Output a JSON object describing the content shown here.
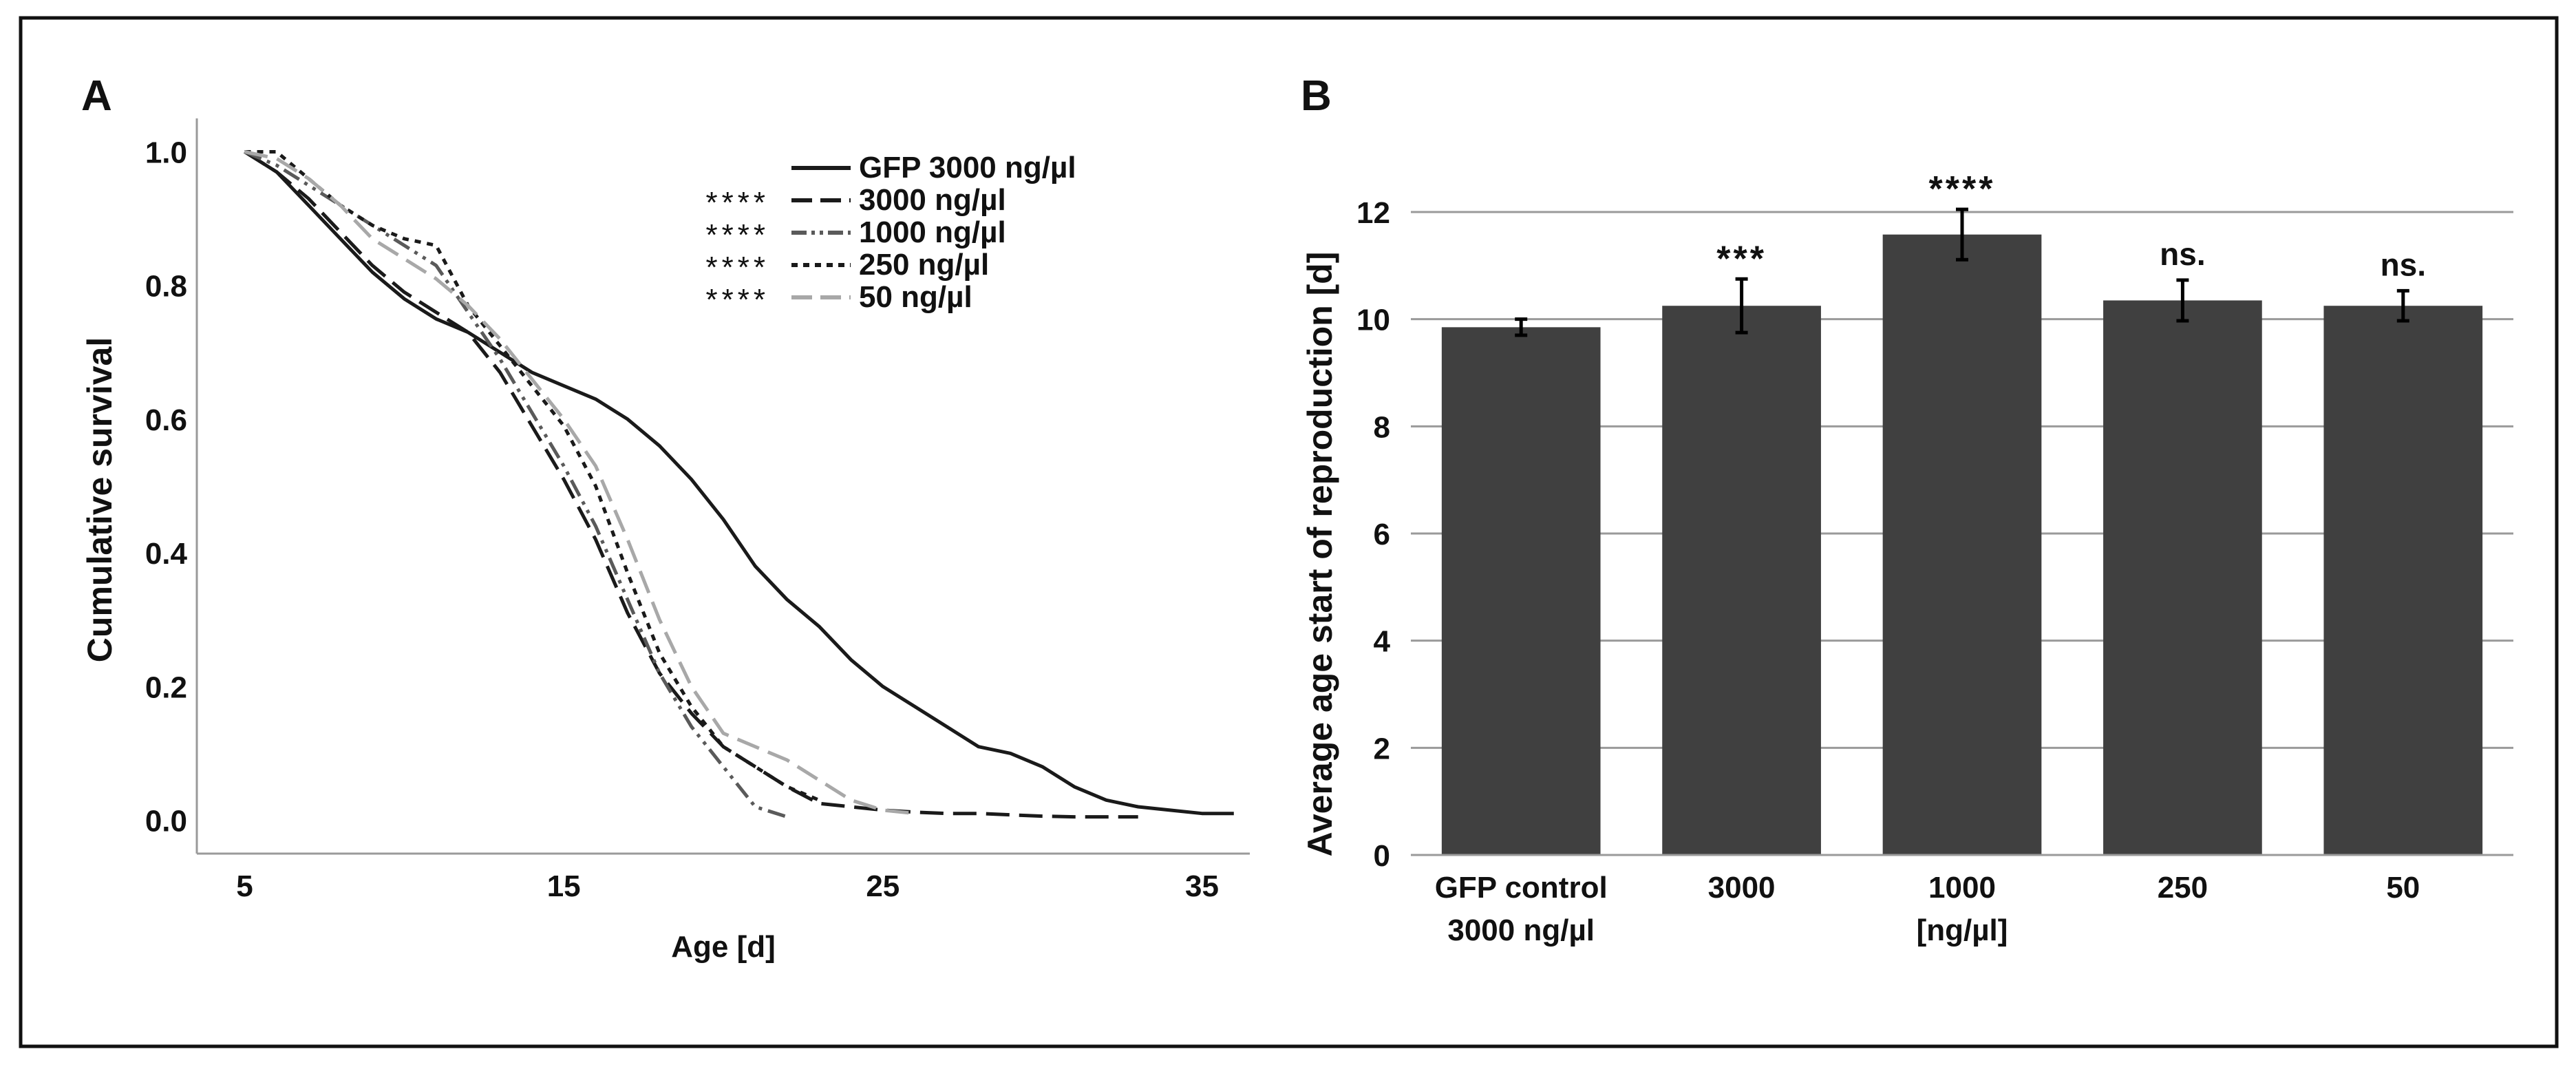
{
  "panel_a_letter": "A",
  "panel_b_letter": "B",
  "chart_data": [
    {
      "type": "line",
      "xlabel": "Age [d]",
      "ylabel": "Cumulative survival",
      "xlim": [
        3.5,
        36.5
      ],
      "ylim": [
        -0.05,
        1.05
      ],
      "xticks": [
        5,
        15,
        25,
        35
      ],
      "yticks": [
        "0.0",
        "0.2",
        "0.4",
        "0.6",
        "0.8",
        "1.0"
      ],
      "grid": false,
      "legend_placement": "top-right",
      "series": [
        {
          "name": "GFP 3000 ng/µl",
          "significance": "",
          "style": "solid",
          "color": "#1a1a1a",
          "x": [
            5,
            6,
            7,
            8,
            9,
            10,
            11,
            12,
            13,
            14,
            15,
            16,
            17,
            18,
            19,
            20,
            21,
            22,
            23,
            24,
            25,
            26,
            27,
            28,
            29,
            30,
            31,
            32,
            33,
            34,
            35,
            36
          ],
          "y": [
            1.0,
            0.97,
            0.92,
            0.87,
            0.82,
            0.78,
            0.75,
            0.73,
            0.7,
            0.67,
            0.65,
            0.63,
            0.6,
            0.56,
            0.51,
            0.45,
            0.38,
            0.33,
            0.29,
            0.24,
            0.2,
            0.17,
            0.14,
            0.11,
            0.1,
            0.08,
            0.05,
            0.03,
            0.02,
            0.015,
            0.01,
            0.01
          ]
        },
        {
          "name": "3000 ng/µl",
          "significance": "****",
          "style": "dashed",
          "color": "#1a1a1a",
          "x": [
            5,
            6,
            7,
            8,
            9,
            10,
            11,
            12,
            13,
            14,
            15,
            16,
            17,
            18,
            19,
            20,
            21,
            22,
            23,
            24,
            25,
            26,
            27,
            28,
            29,
            30,
            31,
            32,
            33
          ],
          "y": [
            1.0,
            0.97,
            0.93,
            0.88,
            0.83,
            0.79,
            0.76,
            0.73,
            0.67,
            0.59,
            0.51,
            0.42,
            0.31,
            0.22,
            0.16,
            0.11,
            0.08,
            0.05,
            0.025,
            0.02,
            0.015,
            0.012,
            0.01,
            0.01,
            0.008,
            0.006,
            0.005,
            0.005,
            0.005
          ]
        },
        {
          "name": "1000 ng/µl",
          "significance": "****",
          "style": "dash-dot-dot",
          "color": "#5a5a5a",
          "x": [
            5,
            6,
            7,
            8,
            9,
            10,
            11,
            12,
            13,
            14,
            15,
            16,
            17,
            18,
            19,
            20,
            21,
            22
          ],
          "y": [
            1.0,
            0.98,
            0.95,
            0.92,
            0.89,
            0.86,
            0.83,
            0.76,
            0.69,
            0.61,
            0.53,
            0.44,
            0.33,
            0.22,
            0.14,
            0.08,
            0.02,
            0.005
          ]
        },
        {
          "name": "250 ng/µl",
          "significance": "****",
          "style": "dotted",
          "color": "#1a1a1a",
          "x": [
            5,
            6,
            7,
            8,
            9,
            10,
            11,
            12,
            13,
            14,
            15,
            16,
            17,
            18,
            19,
            20,
            21,
            22,
            23
          ],
          "y": [
            1.0,
            1.0,
            0.96,
            0.92,
            0.89,
            0.87,
            0.86,
            0.77,
            0.71,
            0.65,
            0.59,
            0.5,
            0.37,
            0.25,
            0.17,
            0.11,
            0.08,
            0.05,
            0.03
          ]
        },
        {
          "name": "50 ng/µl",
          "significance": "****",
          "style": "dashed",
          "color": "#a8a8a8",
          "x": [
            5,
            6,
            7,
            8,
            9,
            10,
            11,
            12,
            13,
            14,
            15,
            16,
            17,
            18,
            19,
            20,
            21,
            22,
            23,
            24,
            25,
            26
          ],
          "y": [
            1.0,
            0.99,
            0.96,
            0.92,
            0.87,
            0.84,
            0.81,
            0.77,
            0.72,
            0.66,
            0.6,
            0.53,
            0.42,
            0.3,
            0.2,
            0.13,
            0.11,
            0.09,
            0.06,
            0.03,
            0.015,
            0.01
          ]
        }
      ]
    },
    {
      "type": "bar",
      "xlabel": "[ng/µl]",
      "ylabel": "Average age start of reproduction [d]",
      "ylim": [
        0,
        12
      ],
      "yticks": [
        0,
        2,
        4,
        6,
        8,
        10,
        12
      ],
      "grid": true,
      "bar_color": "#404040",
      "categories": [
        [
          "GFP control",
          "3000 ng/µl"
        ],
        [
          "3000"
        ],
        [
          "1000"
        ],
        [
          "250"
        ],
        [
          "50"
        ]
      ],
      "values": [
        9.85,
        10.25,
        11.58,
        10.35,
        10.25
      ],
      "errors": [
        0.15,
        0.5,
        0.47,
        0.38,
        0.28
      ],
      "significance": [
        "",
        "***",
        "****",
        "ns.",
        "ns."
      ]
    }
  ]
}
